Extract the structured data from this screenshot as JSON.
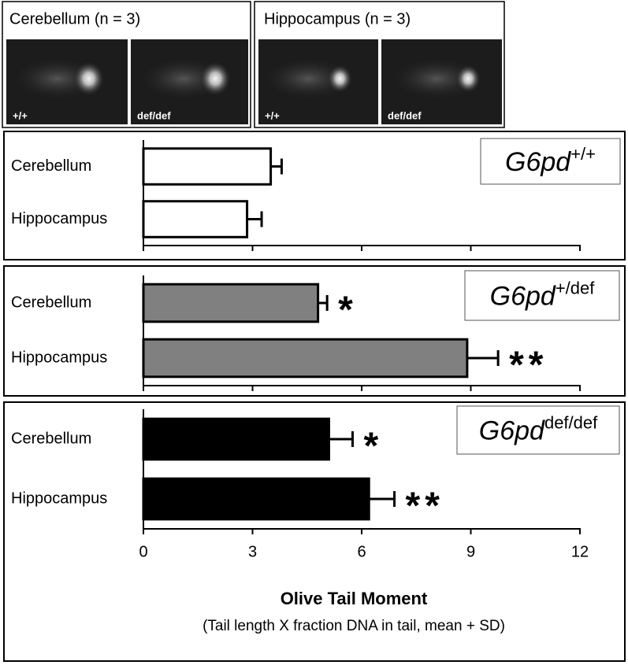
{
  "images": [
    {
      "title": "Cerebellum (n = 3)",
      "labels": [
        "+/+",
        "def/def"
      ]
    },
    {
      "title": "Hippocampus (n = 3)",
      "labels": [
        "+/+",
        "def/def"
      ]
    }
  ],
  "chart_data": [
    {
      "type": "bar",
      "orientation": "horizontal",
      "genotype": {
        "gene": "G6pd",
        "allele": "+/+"
      },
      "categories": [
        "Cerebellum",
        "Hippocampus"
      ],
      "values": [
        3.5,
        2.85
      ],
      "errors": [
        0.3,
        0.4
      ],
      "color": "#ffffff",
      "xlim": [
        0,
        12
      ],
      "xticks": [
        0,
        3,
        6,
        9,
        12
      ]
    },
    {
      "type": "bar",
      "orientation": "horizontal",
      "genotype": {
        "gene": "G6pd",
        "allele": "+/def"
      },
      "categories": [
        "Cerebellum",
        "Hippocampus"
      ],
      "values": [
        4.8,
        8.9
      ],
      "errors": [
        0.25,
        0.85
      ],
      "annotations": [
        "*",
        "**"
      ],
      "color": "#808080",
      "xlim": [
        0,
        12
      ],
      "xticks": [
        0,
        3,
        6,
        9,
        12
      ]
    },
    {
      "type": "bar",
      "orientation": "horizontal",
      "genotype": {
        "gene": "G6pd",
        "allele": "def/def"
      },
      "categories": [
        "Cerebellum",
        "Hippocampus"
      ],
      "values": [
        5.1,
        6.2
      ],
      "errors": [
        0.65,
        0.7
      ],
      "annotations": [
        "*",
        "**"
      ],
      "color": "#000000",
      "xlim": [
        0,
        12
      ],
      "xticks": [
        0,
        3,
        6,
        9,
        12
      ],
      "xlabel": "Olive Tail Moment",
      "xlabel_note": "(Tail length X fraction DNA in tail, mean + SD)"
    }
  ]
}
